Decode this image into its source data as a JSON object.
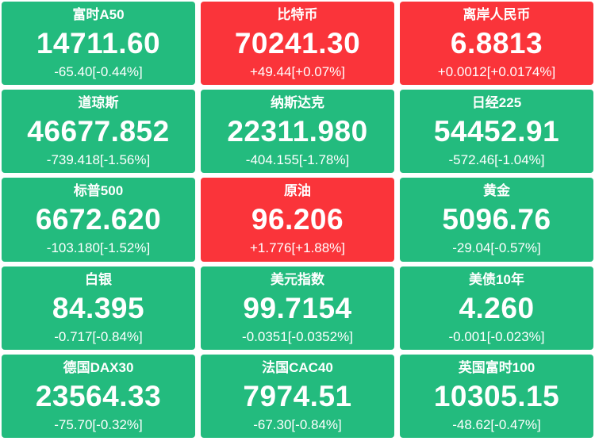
{
  "colors": {
    "up_background": "#fa343a",
    "down_background": "#23bb7e",
    "text": "#ffffff",
    "page_background": "#ffffff"
  },
  "tiles": [
    {
      "name": "富时A50",
      "price": "14711.60",
      "change": "-65.40[-0.44%]",
      "direction": "down"
    },
    {
      "name": "比特币",
      "price": "70241.30",
      "change": "+49.44[+0.07%]",
      "direction": "up"
    },
    {
      "name": "离岸人民币",
      "price": "6.8813",
      "change": "+0.0012[+0.0174%]",
      "direction": "up"
    },
    {
      "name": "道琼斯",
      "price": "46677.852",
      "change": "-739.418[-1.56%]",
      "direction": "down"
    },
    {
      "name": "纳斯达克",
      "price": "22311.980",
      "change": "-404.155[-1.78%]",
      "direction": "down"
    },
    {
      "name": "日经225",
      "price": "54452.91",
      "change": "-572.46[-1.04%]",
      "direction": "down"
    },
    {
      "name": "标普500",
      "price": "6672.620",
      "change": "-103.180[-1.52%]",
      "direction": "down"
    },
    {
      "name": "原油",
      "price": "96.206",
      "change": "+1.776[+1.88%]",
      "direction": "up"
    },
    {
      "name": "黄金",
      "price": "5096.76",
      "change": "-29.04[-0.57%]",
      "direction": "down"
    },
    {
      "name": "白银",
      "price": "84.395",
      "change": "-0.717[-0.84%]",
      "direction": "down"
    },
    {
      "name": "美元指数",
      "price": "99.7154",
      "change": "-0.0351[-0.0352%]",
      "direction": "down"
    },
    {
      "name": "美债10年",
      "price": "4.260",
      "change": "-0.001[-0.023%]",
      "direction": "down"
    },
    {
      "name": "德国DAX30",
      "price": "23564.33",
      "change": "-75.70[-0.32%]",
      "direction": "down"
    },
    {
      "name": "法国CAC40",
      "price": "7974.51",
      "change": "-67.30[-0.84%]",
      "direction": "down"
    },
    {
      "name": "英国富时100",
      "price": "10305.15",
      "change": "-48.62[-0.47%]",
      "direction": "down"
    }
  ]
}
